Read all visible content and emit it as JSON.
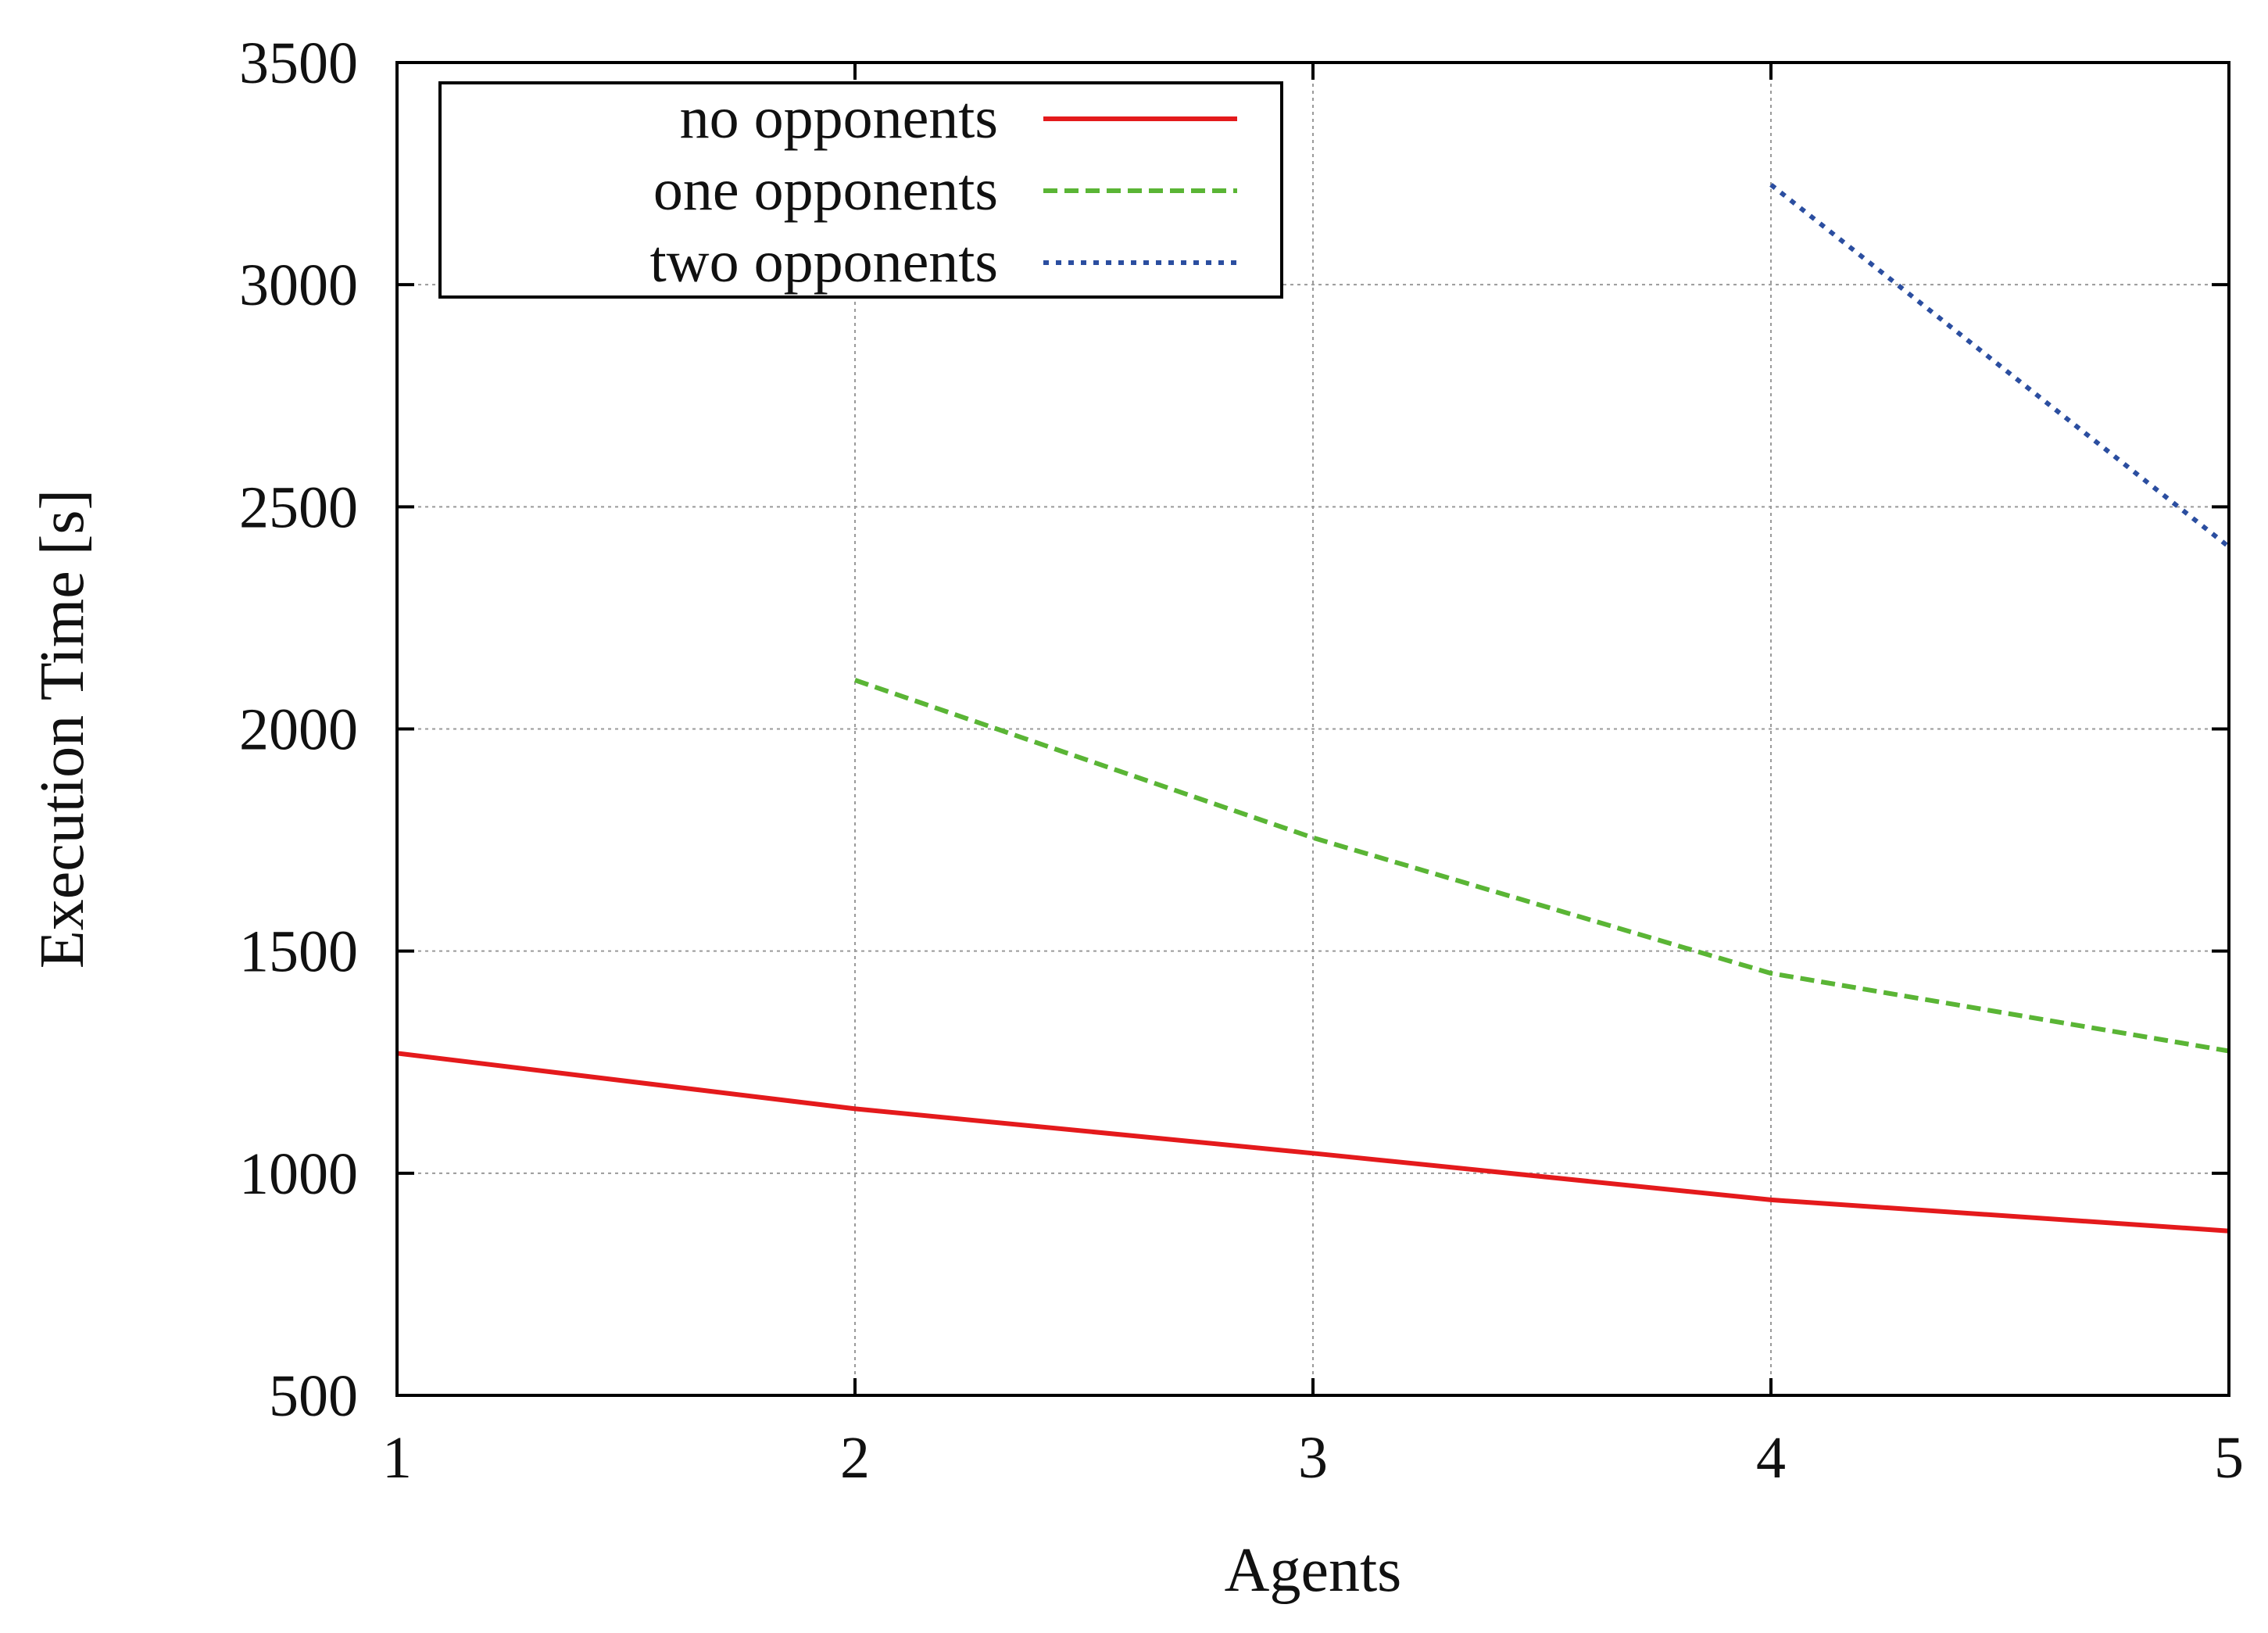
{
  "chart_data": {
    "type": "line",
    "title": "",
    "xlabel": "Agents",
    "ylabel": "Execution Time [s]",
    "xlim": [
      1,
      5
    ],
    "ylim": [
      500,
      3500
    ],
    "x_ticks": [
      "1",
      "2",
      "3",
      "4",
      "5"
    ],
    "y_ticks": [
      "500",
      "1000",
      "1500",
      "2000",
      "2500",
      "3000",
      "3500"
    ],
    "grid": true,
    "legend_position": "top-left",
    "series": [
      {
        "name": "no opponents",
        "color": "#e41a1c",
        "dash": "solid",
        "x": [
          1,
          2,
          3,
          4,
          5
        ],
        "y": [
          1270,
          1145,
          1045,
          940,
          870
        ]
      },
      {
        "name": "one opponents",
        "color": "#5ab535",
        "dash": "dashed",
        "x": [
          2,
          3,
          4,
          5
        ],
        "y": [
          2110,
          1755,
          1450,
          1275
        ]
      },
      {
        "name": "two opponents",
        "color": "#2b4ea0",
        "dash": "dotted",
        "x": [
          4,
          5
        ],
        "y": [
          3225,
          2410
        ]
      }
    ]
  }
}
